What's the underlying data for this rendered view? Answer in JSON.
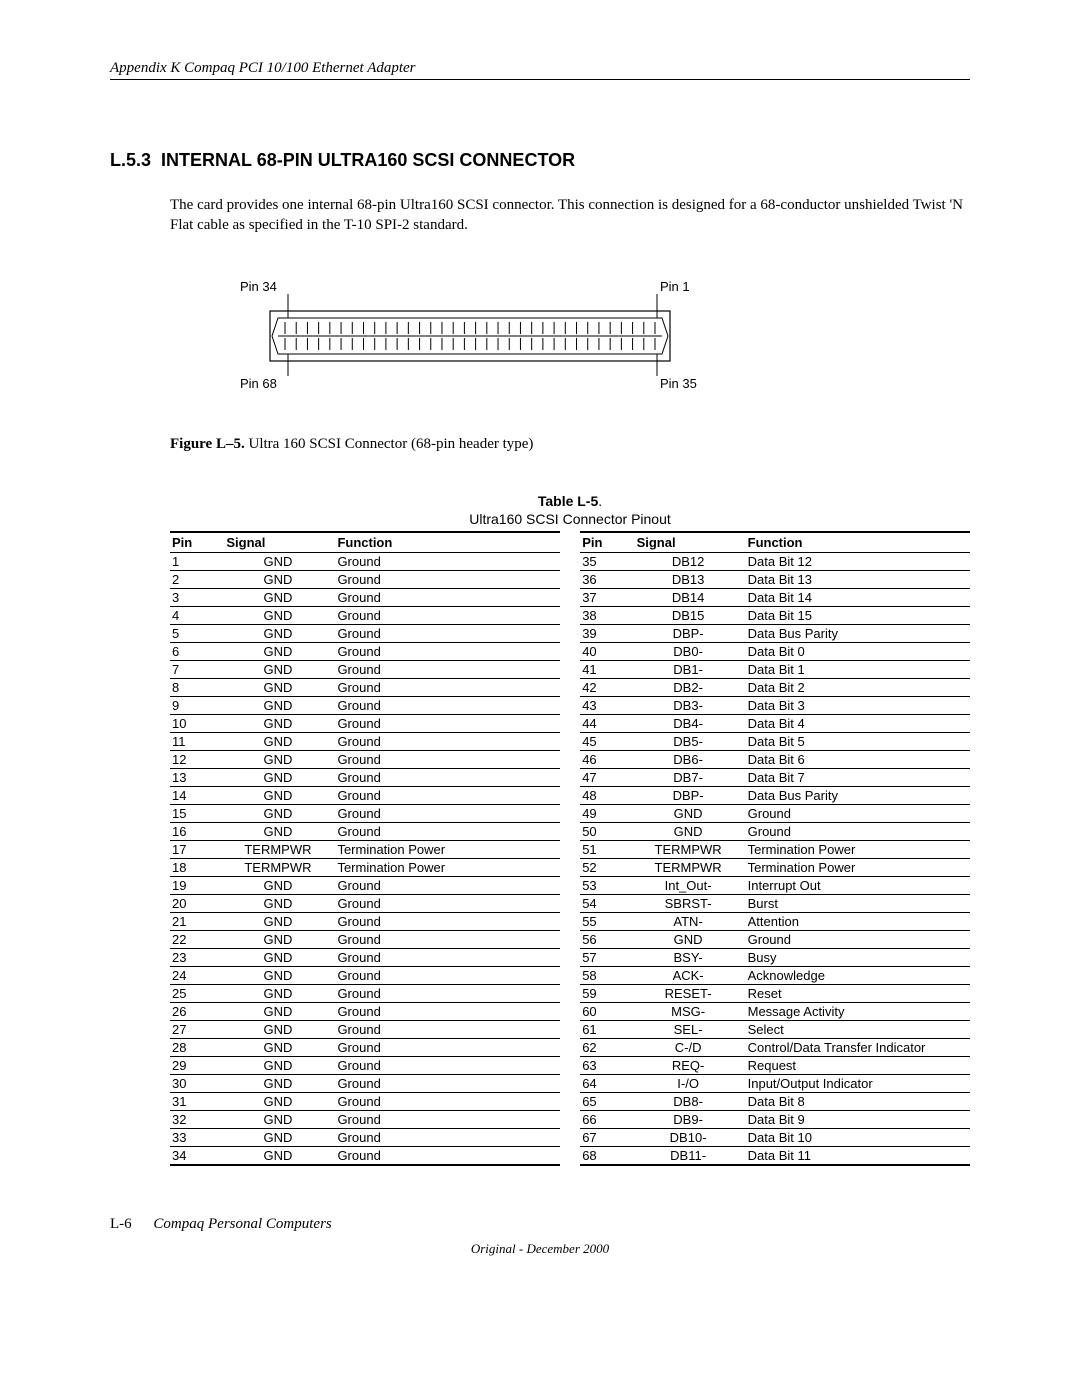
{
  "header": "Appendix K  Compaq PCI 10/100 Ethernet Adapter",
  "section_number": "L.5.3",
  "section_title": "INTERNAL 68-PIN ULTRA160 SCSI CONNECTOR",
  "paragraph": "The card provides one internal 68-pin Ultra160 SCSI connector. This connection is designed for a 68-conductor unshielded Twist 'N Flat cable as specified in the T-10 SPI-2 standard.",
  "figure": {
    "label_bold": "Figure L–5.",
    "label_rest": " Ultra 160 SCSI Connector (68-pin header type)",
    "pins": {
      "tl": "Pin 34",
      "tr": "Pin 1",
      "bl": "Pin 68",
      "br": "Pin 35"
    }
  },
  "table": {
    "title_bold": "Table L-5",
    "title_dot": ".",
    "subtitle": "Ultra160 SCSI Connector Pinout",
    "headers": [
      "Pin",
      "Signal",
      "Function",
      "Pin",
      "Signal",
      "Function"
    ],
    "rows": [
      [
        "1",
        "GND",
        "Ground",
        "35",
        "DB12",
        "Data Bit 12"
      ],
      [
        "2",
        "GND",
        "Ground",
        "36",
        "DB13",
        "Data Bit 13"
      ],
      [
        "3",
        "GND",
        "Ground",
        "37",
        "DB14",
        "Data Bit 14"
      ],
      [
        "4",
        "GND",
        "Ground",
        "38",
        "DB15",
        "Data Bit 15"
      ],
      [
        "5",
        "GND",
        "Ground",
        "39",
        "DBP-",
        "Data Bus Parity"
      ],
      [
        "6",
        "GND",
        "Ground",
        "40",
        "DB0-",
        "Data Bit 0"
      ],
      [
        "7",
        "GND",
        "Ground",
        "41",
        "DB1-",
        "Data Bit 1"
      ],
      [
        "8",
        "GND",
        "Ground",
        "42",
        "DB2-",
        "Data Bit 2"
      ],
      [
        "9",
        "GND",
        "Ground",
        "43",
        "DB3-",
        "Data Bit 3"
      ],
      [
        "10",
        "GND",
        "Ground",
        "44",
        "DB4-",
        "Data Bit 4"
      ],
      [
        "11",
        "GND",
        "Ground",
        "45",
        "DB5-",
        "Data Bit 5"
      ],
      [
        "12",
        "GND",
        "Ground",
        "46",
        "DB6-",
        "Data Bit 6"
      ],
      [
        "13",
        "GND",
        "Ground",
        "47",
        "DB7-",
        "Data Bit 7"
      ],
      [
        "14",
        "GND",
        "Ground",
        "48",
        "DBP-",
        "Data Bus Parity"
      ],
      [
        "15",
        "GND",
        "Ground",
        "49",
        "GND",
        "Ground"
      ],
      [
        "16",
        "GND",
        "Ground",
        "50",
        "GND",
        "Ground"
      ],
      [
        "17",
        "TERMPWR",
        "Termination Power",
        "51",
        "TERMPWR",
        "Termination Power"
      ],
      [
        "18",
        "TERMPWR",
        "Termination Power",
        "52",
        "TERMPWR",
        "Termination Power"
      ],
      [
        "19",
        "GND",
        "Ground",
        "53",
        "Int_Out-",
        "Interrupt Out"
      ],
      [
        "20",
        "GND",
        "Ground",
        "54",
        "SBRST-",
        "Burst"
      ],
      [
        "21",
        "GND",
        "Ground",
        "55",
        "ATN-",
        "Attention"
      ],
      [
        "22",
        "GND",
        "Ground",
        "56",
        "GND",
        "Ground"
      ],
      [
        "23",
        "GND",
        "Ground",
        "57",
        "BSY-",
        "Busy"
      ],
      [
        "24",
        "GND",
        "Ground",
        "58",
        "ACK-",
        "Acknowledge"
      ],
      [
        "25",
        "GND",
        "Ground",
        "59",
        "RESET-",
        "Reset"
      ],
      [
        "26",
        "GND",
        "Ground",
        "60",
        "MSG-",
        "Message Activity"
      ],
      [
        "27",
        "GND",
        "Ground",
        "61",
        "SEL-",
        "Select"
      ],
      [
        "28",
        "GND",
        "Ground",
        "62",
        "C-/D",
        "Control/Data Transfer Indicator"
      ],
      [
        "29",
        "GND",
        "Ground",
        "63",
        "REQ-",
        "Request"
      ],
      [
        "30",
        "GND",
        "Ground",
        "64",
        "I-/O",
        "Input/Output Indicator"
      ],
      [
        "31",
        "GND",
        "Ground",
        "65",
        "DB8-",
        "Data Bit 8"
      ],
      [
        "32",
        "GND",
        "Ground",
        "66",
        "DB9-",
        "Data Bit 9"
      ],
      [
        "33",
        "GND",
        "Ground",
        "67",
        "DB10-",
        "Data Bit 10"
      ],
      [
        "34",
        "GND",
        "Ground",
        "68",
        "DB11-",
        "Data Bit 11"
      ]
    ]
  },
  "footer": {
    "page": "L-6",
    "title": "Compaq Personal Computers",
    "sub": "Original - December 2000"
  }
}
